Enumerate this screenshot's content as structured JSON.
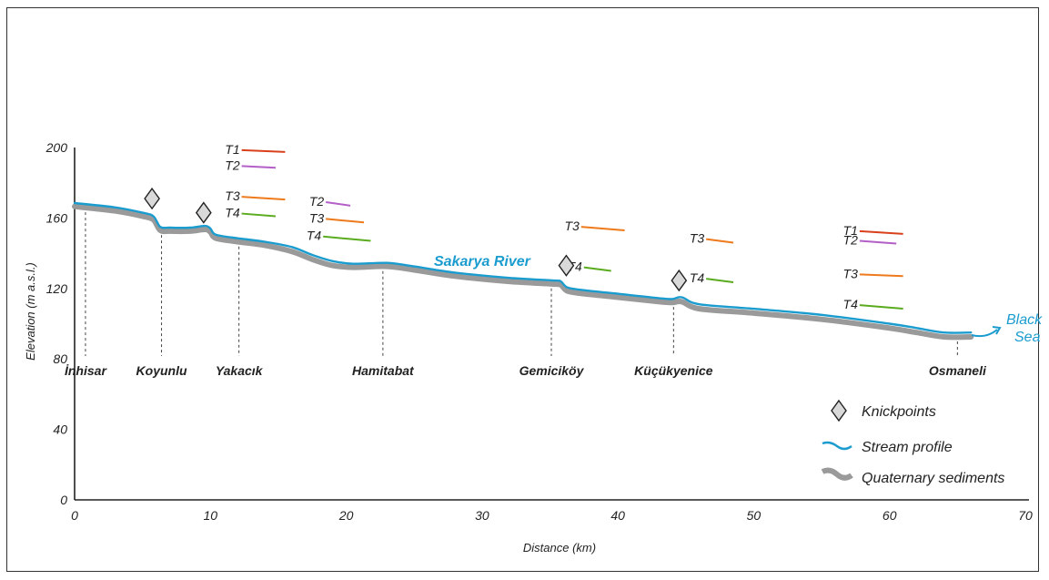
{
  "chart_data": {
    "type": "line",
    "xlabel": "Distance (km)",
    "ylabel": "Elevation (m a.s.l.)",
    "xlim": [
      0,
      70
    ],
    "ylim": [
      0,
      200
    ],
    "x_ticks": [
      0,
      10,
      20,
      30,
      40,
      50,
      60,
      70
    ],
    "y_ticks": [
      0,
      40,
      80,
      120,
      160,
      200
    ],
    "grid": false,
    "colors": {
      "stream": "#1a9ccf",
      "sediments": "#9a9a9a",
      "T1": "#d9401c",
      "T2": "#b35fc8",
      "T3": "#ee7a1c",
      "T4": "#5aab1f"
    },
    "series": [
      {
        "name": "Stream profile",
        "x": [
          0,
          3,
          5,
          5.8,
          6.3,
          7,
          8.5,
          9.6,
          10,
          10.4,
          12,
          14,
          16,
          17.5,
          19,
          20.5,
          23,
          25,
          28,
          32,
          35.3,
          35.8,
          36.3,
          37.5,
          40,
          43,
          44,
          44.7,
          46,
          50,
          55,
          60,
          62,
          64,
          66
        ],
        "y": [
          168.5,
          166,
          163,
          161,
          155,
          154.5,
          154.5,
          155.5,
          154,
          150.5,
          148.5,
          146.5,
          143.5,
          139,
          135.5,
          134,
          134.5,
          132.5,
          129,
          126,
          124.5,
          124,
          120.5,
          119,
          117,
          114.5,
          114,
          115,
          111,
          108.5,
          105,
          100,
          97.5,
          95,
          95
        ]
      },
      {
        "name": "Quaternary sediments",
        "x": [
          0,
          3,
          5,
          5.8,
          6.3,
          7,
          8.5,
          9.6,
          10,
          10.4,
          12,
          14,
          16,
          17.5,
          19,
          20.5,
          23,
          25,
          28,
          32,
          35.3,
          35.8,
          36.3,
          37.5,
          40,
          43,
          44,
          44.7,
          46,
          50,
          55,
          60,
          62,
          64,
          66
        ],
        "y": [
          166.5,
          164,
          161,
          159,
          153,
          152.5,
          152.5,
          153.5,
          152,
          148.5,
          146.5,
          144.5,
          141,
          136.5,
          133,
          132,
          132.5,
          130.5,
          127,
          124,
          122.5,
          122,
          118.5,
          117,
          115,
          112.5,
          112,
          112.5,
          108.5,
          106,
          102.5,
          97.5,
          95,
          92.5,
          92.5
        ]
      }
    ],
    "terraces": [
      {
        "label": "T1",
        "x1": 12.3,
        "y1": 198.5,
        "x2": 15.5,
        "y2": 197.5
      },
      {
        "label": "T2",
        "x1": 12.3,
        "y1": 189.5,
        "x2": 14.8,
        "y2": 188.5
      },
      {
        "label": "T3",
        "x1": 12.3,
        "y1": 172,
        "x2": 15.5,
        "y2": 170.5
      },
      {
        "label": "T4",
        "x1": 12.3,
        "y1": 162.5,
        "x2": 14.8,
        "y2": 161
      },
      {
        "label": "T2",
        "x1": 18.5,
        "y1": 169,
        "x2": 20.3,
        "y2": 167
      },
      {
        "label": "T3",
        "x1": 18.5,
        "y1": 159.5,
        "x2": 21.3,
        "y2": 157.5
      },
      {
        "label": "T4",
        "x1": 18.3,
        "y1": 149.5,
        "x2": 21.8,
        "y2": 147
      },
      {
        "label": "T3",
        "x1": 37.3,
        "y1": 155,
        "x2": 40.5,
        "y2": 153
      },
      {
        "label": "T4",
        "x1": 37.5,
        "y1": 132,
        "x2": 39.5,
        "y2": 130
      },
      {
        "label": "T3",
        "x1": 46.5,
        "y1": 148,
        "x2": 48.5,
        "y2": 146
      },
      {
        "label": "T4",
        "x1": 46.5,
        "y1": 125.5,
        "x2": 48.5,
        "y2": 123.5
      },
      {
        "label": "T1",
        "x1": 57.8,
        "y1": 152.5,
        "x2": 61,
        "y2": 151
      },
      {
        "label": "T2",
        "x1": 57.8,
        "y1": 147,
        "x2": 60.5,
        "y2": 145.5
      },
      {
        "label": "T3",
        "x1": 57.8,
        "y1": 128,
        "x2": 61,
        "y2": 127
      },
      {
        "label": "T4",
        "x1": 57.8,
        "y1": 110.5,
        "x2": 61,
        "y2": 108.5
      }
    ],
    "knickpoints": [
      {
        "x": 5.7,
        "y": 171
      },
      {
        "x": 9.5,
        "y": 163
      },
      {
        "x": 36.2,
        "y": 133
      },
      {
        "x": 44.5,
        "y": 124.5
      }
    ],
    "locations": [
      {
        "name": "İnhisar",
        "x": 0.8
      },
      {
        "name": "Koyunlu",
        "x": 6.4
      },
      {
        "name": "Yakacık",
        "x": 12.1
      },
      {
        "name": "Hamitabat",
        "x": 22.7
      },
      {
        "name": "Gemiciköy",
        "x": 35.1
      },
      {
        "name": "Küçükyenice",
        "x": 44.1
      },
      {
        "name": "Osmaneli",
        "x": 65
      }
    ],
    "annotations": {
      "river": "Sakarya River",
      "sea_line1": "Black",
      "sea_line2": "Sea"
    },
    "legend": {
      "placement": "bottom-right",
      "items": [
        "Knickpoints",
        "Stream profile",
        "Quaternary sediments"
      ]
    }
  }
}
